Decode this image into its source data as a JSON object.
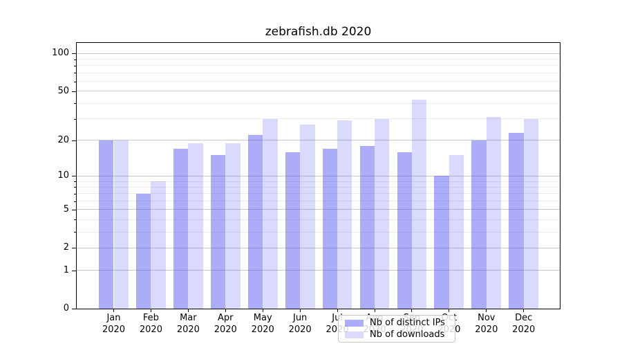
{
  "title": "zebrafish.db 2020",
  "chart_data": {
    "type": "bar",
    "title": "zebrafish.db 2020",
    "xlabel": "",
    "ylabel": "",
    "yscale": "log10(1+value) with 0 at baseline",
    "categories": [
      "Jan 2020",
      "Feb 2020",
      "Mar 2020",
      "Apr 2020",
      "May 2020",
      "Jun 2020",
      "Jul 2020",
      "Aug 2020",
      "Sep 2020",
      "Oct 2020",
      "Nov 2020",
      "Dec 2020"
    ],
    "month_labels": [
      "Jan",
      "Feb",
      "Mar",
      "Apr",
      "May",
      "Jun",
      "Jul",
      "Aug",
      "Sep",
      "Oct",
      "Nov",
      "Dec"
    ],
    "year_label": "2020",
    "series": [
      {
        "name": "Nb of distinct IPs",
        "key": "distinct-ips",
        "color": "rgba(70,70,240,0.45)",
        "values": [
          20,
          7,
          17,
          15,
          22,
          16,
          17,
          18,
          16,
          10,
          20,
          23
        ]
      },
      {
        "name": "Nb of downloads",
        "key": "downloads",
        "color": "rgba(70,70,240,0.2)",
        "values": [
          20,
          9,
          19,
          19,
          30,
          27,
          29,
          30,
          43,
          15,
          31,
          30
        ]
      }
    ],
    "y_major_ticks": [
      100,
      50,
      20,
      10,
      5,
      2,
      1,
      0
    ],
    "y_minor_ticks": [
      3,
      4,
      6,
      7,
      8,
      9,
      30,
      40,
      60,
      70,
      80,
      90
    ],
    "y_axis_top_value": 121,
    "grid": true,
    "legend_position": "lower center"
  },
  "colors": {
    "grid_major": "#c8c8c8",
    "grid_minor": "#ececec",
    "spine": "#000000",
    "text": "#000000",
    "legend_border": "#c8c8c8",
    "legend_background": "rgba(255,255,255,0.82)",
    "background": "#ffffff"
  }
}
